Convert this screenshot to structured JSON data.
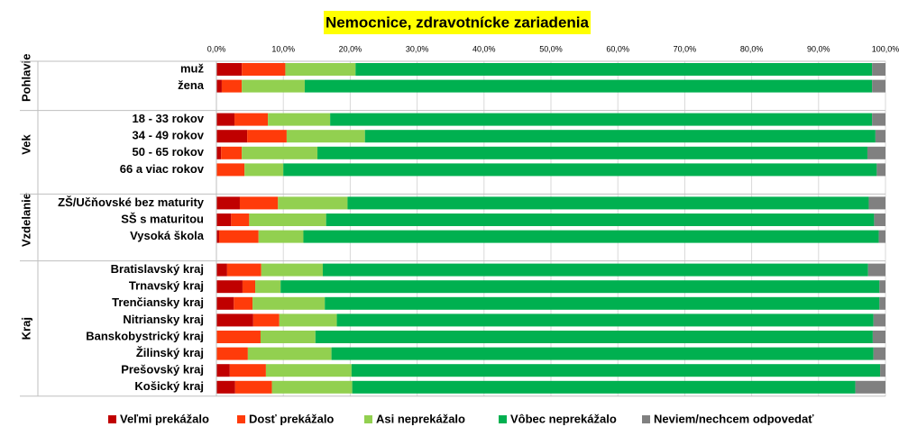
{
  "chart_data": {
    "type": "stacked-bar-horizontal",
    "title": "Nemocnice, zdravotnícke zariadenia",
    "groups": [
      {
        "name": "Pohlavie",
        "categories": [
          "muž",
          "žena"
        ]
      },
      {
        "name": "Vek",
        "categories": [
          "18 - 33 rokov",
          "34 - 49 rokov",
          "50 - 65 rokov",
          "66 a viac rokov"
        ]
      },
      {
        "name": "Vzdelanie",
        "categories": [
          "ZŠ/Učňovské bez maturity",
          "SŠ s maturitou",
          "Vysoká škola"
        ]
      },
      {
        "name": "Kraj",
        "categories": [
          "Bratislavský kraj",
          "Trnavský kraj",
          "Trenčiansky kraj",
          "Nitriansky kraj",
          "Banskobystrický kraj",
          "Žilinský kraj",
          "Prešovský kraj",
          "Košický kraj"
        ]
      }
    ],
    "series": [
      {
        "name": "Veľmi prekážalo",
        "color": "#c00000",
        "values": [
          3.8,
          0.8,
          2.7,
          4.6,
          0.7,
          0,
          3.5,
          2.2,
          0.4,
          1.6,
          3.9,
          2.6,
          5.5,
          0,
          0,
          2.0,
          2.8
        ]
      },
      {
        "name": "Dosť  prekážalo",
        "color": "#ff3b0a",
        "values": [
          6.5,
          3.0,
          5.0,
          5.9,
          3.1,
          4.2,
          5.7,
          2.7,
          5.9,
          5.1,
          1.9,
          2.8,
          3.9,
          6.6,
          4.7,
          5.4,
          5.5
        ]
      },
      {
        "name": "Asi  neprekážalo",
        "color": "#92d050",
        "values": [
          10.5,
          9.4,
          9.3,
          11.7,
          11.3,
          5.8,
          10.4,
          11.5,
          6.7,
          9.2,
          3.8,
          10.8,
          8.6,
          8.2,
          12.5,
          12.8,
          12.0
        ]
      },
      {
        "name": "Vôbec neprekážalo",
        "color": "#00b050",
        "values": [
          77.2,
          84.8,
          81.0,
          76.3,
          82.2,
          88.7,
          77.9,
          81.9,
          86.0,
          81.5,
          89.5,
          82.9,
          80.2,
          83.3,
          81.0,
          79.0,
          75.2
        ]
      },
      {
        "name": "Neviem/nechcem odpovedať",
        "color": "#808080",
        "values": [
          2.0,
          2.0,
          2.0,
          1.5,
          2.7,
          1.3,
          2.5,
          1.7,
          1.0,
          2.6,
          0.9,
          0.9,
          1.8,
          1.9,
          1.8,
          0.8,
          4.5
        ]
      }
    ],
    "xlim": [
      0,
      100
    ],
    "xticks": [
      {
        "value": 0,
        "label": "0,0%"
      },
      {
        "value": 10,
        "label": "10,0%"
      },
      {
        "value": 20,
        "label": "20,0%"
      },
      {
        "value": 30,
        "label": "30,0%"
      },
      {
        "value": 40,
        "label": "40,0%"
      },
      {
        "value": 50,
        "label": "50,0%"
      },
      {
        "value": 60,
        "label": "60,0%"
      },
      {
        "value": 70,
        "label": "70,0%"
      },
      {
        "value": 80,
        "label": "80,0%"
      },
      {
        "value": 90,
        "label": "90,0%"
      },
      {
        "value": 100,
        "label": "100,0%"
      }
    ],
    "grid": true
  }
}
